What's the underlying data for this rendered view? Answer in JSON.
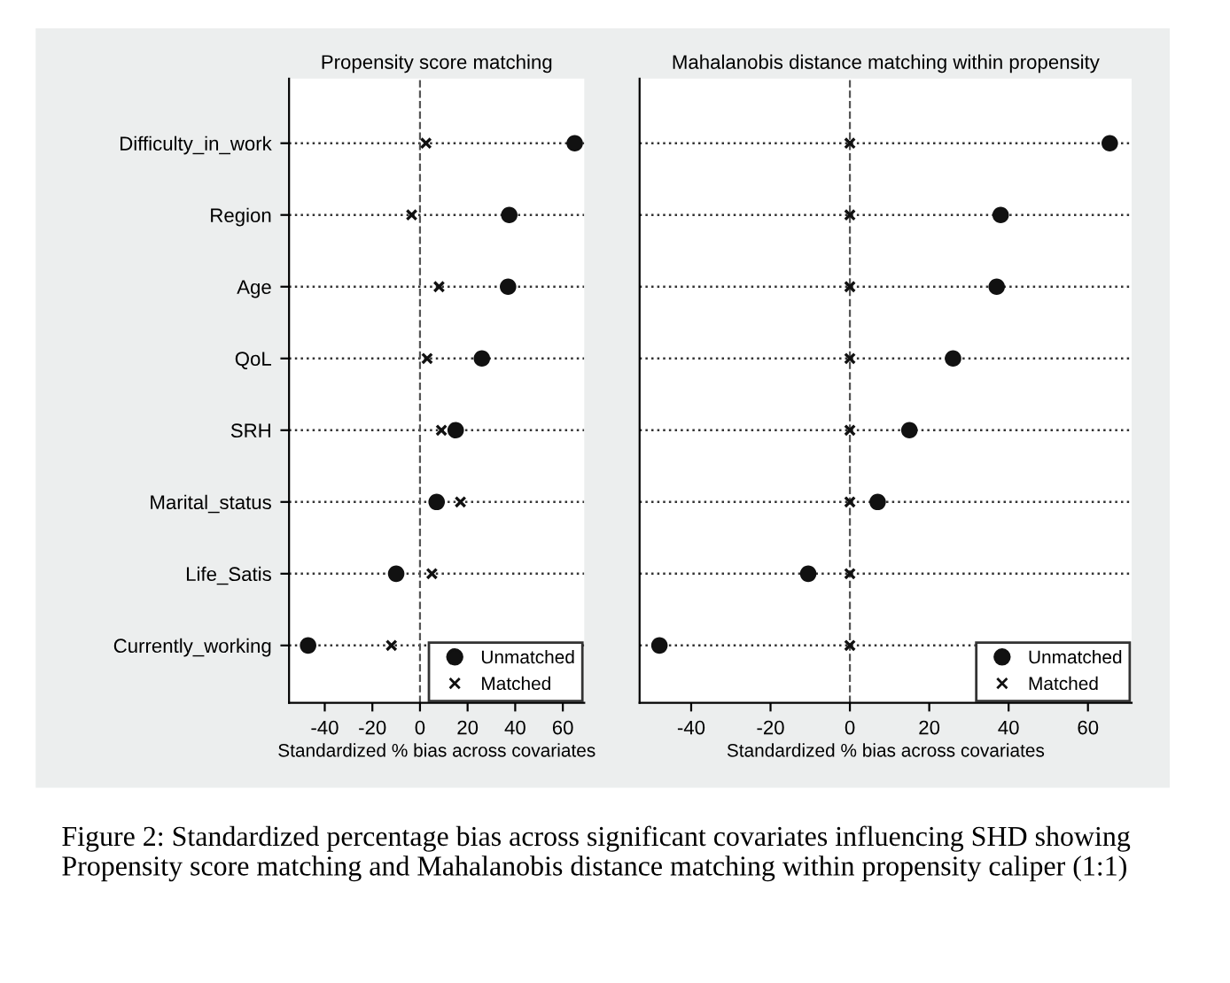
{
  "chart_data": [
    {
      "type": "scatter",
      "orientation": "horizontal",
      "title": "Propensity score matching",
      "xlabel": "Standardized % bias across covariates",
      "categories": [
        "Difficulty_in_work",
        "Region",
        "Age",
        "QoL",
        "SRH",
        "Marital_status",
        "Life_Satis",
        "Currently_working"
      ],
      "series": [
        {
          "name": "Unmatched",
          "color": "#111111",
          "marker": "circle",
          "values": [
            65,
            37.5,
            37,
            26,
            15,
            7,
            -10,
            -47
          ]
        },
        {
          "name": "Matched",
          "color": "#111111",
          "marker": "cross",
          "values": [
            2.5,
            -3.5,
            8,
            3,
            9,
            17,
            5,
            -12
          ]
        }
      ],
      "xlim": [
        -55,
        69
      ],
      "xticks": [
        -40,
        -20,
        0,
        20,
        40,
        60
      ],
      "grid": "y",
      "legend": "bottom right",
      "ref_lines": [
        {
          "axis": "x",
          "value": 0,
          "line_style": "dashed",
          "color": "#555555"
        }
      ],
      "annotations": [
        "Figure 2: Standardized percentage bias across significant covariates influencing SHD showing Propensity score matching and Mahalanobis distance matching within propensity caliper (1:1)"
      ]
    },
    {
      "type": "scatter",
      "orientation": "horizontal",
      "title": "Mahalanobis distance matching within propensity",
      "xlabel": "Standardized % bias across covariates",
      "categories": [
        null,
        null,
        null,
        null,
        null,
        null,
        null,
        null
      ],
      "series": [
        {
          "name": "Unmatched",
          "color": "#111111",
          "marker": "circle",
          "values": [
            65.5,
            38,
            37,
            26,
            15,
            7,
            -10.5,
            -48
          ]
        },
        {
          "name": "Matched",
          "color": "#111111",
          "marker": "cross",
          "values": [
            0,
            0,
            0,
            0,
            0,
            0,
            0,
            0
          ]
        }
      ],
      "xlim": [
        -53,
        71
      ],
      "xticks": [
        -40,
        -20,
        0,
        20,
        40,
        60
      ],
      "grid": "y",
      "legend": "bottom right",
      "tick_labels": "x",
      "ref_lines": [
        {
          "axis": "x",
          "value": 0,
          "line_style": "dashed",
          "color": "#555555"
        }
      ]
    }
  ]
}
